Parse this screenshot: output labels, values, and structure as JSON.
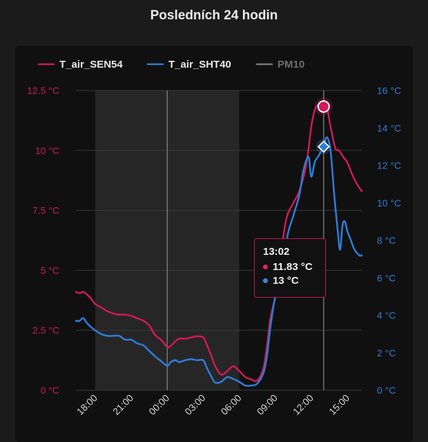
{
  "page": {
    "title": "Posledních 24 hodin"
  },
  "colors": {
    "series1": "#cc1a55",
    "series2": "#2f7bd6",
    "series3": "#777777",
    "hidden_legend_text": "#6d6d6d"
  },
  "chart_data": {
    "type": "line",
    "title": "Posledních 24 hodin",
    "legend_position": "top-left",
    "grid": true,
    "x_tick_labels": [
      "18:00",
      "21:00",
      "00:00",
      "03:00",
      "06:00",
      "09:00",
      "12:00",
      "15:00"
    ],
    "x_tick_hours": [
      18,
      21,
      24,
      27,
      30,
      33,
      36,
      39
    ],
    "xlim": [
      16.4,
      40.2
    ],
    "shaded_night_bands": [
      [
        18,
        24
      ],
      [
        24,
        30
      ]
    ],
    "crosshair_hours": [
      24,
      37.03
    ],
    "y_left": {
      "ticks": [
        "0 °C",
        "2.5 °C",
        "5 °C",
        "7.5 °C",
        "10 °C",
        "12.5 °C"
      ],
      "values": [
        0,
        2.5,
        5,
        7.5,
        10,
        12.5
      ],
      "ylim": [
        0,
        12.5
      ]
    },
    "y_right": {
      "ticks": [
        "0 °C",
        "2 °C",
        "4 °C",
        "6 °C",
        "8 °C",
        "10 °C",
        "12 °C",
        "14 °C",
        "16 °C"
      ],
      "values": [
        0,
        2,
        4,
        6,
        8,
        10,
        12,
        14,
        16
      ],
      "ylim": [
        0,
        16
      ]
    },
    "series": [
      {
        "name": "T_air_SEN54",
        "axis": "left",
        "visible": true,
        "x": [
          16.4,
          16.7,
          17.0,
          17.3,
          17.6,
          18.0,
          18.5,
          19.0,
          19.5,
          20.0,
          20.5,
          21.0,
          21.5,
          22.0,
          22.5,
          23.0,
          23.5,
          24.0,
          24.3,
          24.7,
          25.0,
          25.5,
          26.0,
          26.5,
          27.0,
          27.3,
          27.7,
          28.0,
          28.5,
          29.0,
          29.5,
          30.0,
          30.5,
          31.0,
          31.5,
          32.0,
          32.3,
          32.6,
          33.0,
          33.3,
          33.7,
          34.0,
          34.5,
          35.0,
          35.5,
          35.8,
          36.0,
          36.3,
          36.6,
          37.0,
          37.3,
          37.6,
          38.0,
          38.3,
          38.7,
          39.0,
          39.4,
          39.8,
          40.2
        ],
        "y": [
          4.1,
          4.05,
          4.1,
          4.0,
          3.85,
          3.6,
          3.45,
          3.3,
          3.2,
          3.15,
          3.15,
          3.1,
          3.0,
          2.9,
          2.7,
          2.3,
          2.1,
          1.8,
          1.85,
          2.05,
          2.15,
          2.15,
          2.2,
          2.25,
          2.2,
          1.9,
          1.4,
          1.0,
          0.65,
          0.8,
          1.0,
          0.8,
          0.55,
          0.45,
          0.4,
          0.9,
          1.8,
          3.0,
          3.9,
          5.0,
          6.5,
          7.3,
          7.8,
          8.3,
          9.2,
          10.2,
          11.0,
          11.7,
          11.9,
          11.83,
          11.8,
          11.0,
          10.1,
          10.0,
          9.7,
          9.5,
          9.0,
          8.6,
          8.3
        ]
      },
      {
        "name": "T_air_SHT40",
        "axis": "right",
        "visible": true,
        "x": [
          16.4,
          16.7,
          17.0,
          17.3,
          17.6,
          18.0,
          18.5,
          19.0,
          19.5,
          20.0,
          20.5,
          21.0,
          21.5,
          22.0,
          22.5,
          23.0,
          23.5,
          24.0,
          24.3,
          24.7,
          25.0,
          25.5,
          26.0,
          26.5,
          27.0,
          27.3,
          27.7,
          28.0,
          28.5,
          29.0,
          29.5,
          30.0,
          30.5,
          31.0,
          31.5,
          32.0,
          32.3,
          32.6,
          33.0,
          33.3,
          33.7,
          34.0,
          34.5,
          35.0,
          35.3,
          35.6,
          35.8,
          36.0,
          36.3,
          36.6,
          37.0,
          37.3,
          37.6,
          37.9,
          38.2,
          38.4,
          38.6,
          38.8,
          39.0,
          39.3,
          39.6,
          40.0,
          40.2
        ],
        "y": [
          3.7,
          3.7,
          3.85,
          3.6,
          3.4,
          3.2,
          3.0,
          2.9,
          2.9,
          2.9,
          2.7,
          2.7,
          2.5,
          2.4,
          2.1,
          1.8,
          1.55,
          1.3,
          1.5,
          1.6,
          1.5,
          1.6,
          1.65,
          1.6,
          1.6,
          1.2,
          0.7,
          0.4,
          0.45,
          0.7,
          0.6,
          0.45,
          0.25,
          0.25,
          0.35,
          0.9,
          1.8,
          3.4,
          5.0,
          5.4,
          6.3,
          8.2,
          9.3,
          10.4,
          11.6,
          12.3,
          12.4,
          11.4,
          12.2,
          12.5,
          13.0,
          13.5,
          12.8,
          10.5,
          8.5,
          7.5,
          8.8,
          9.0,
          8.5,
          8.0,
          7.5,
          7.2,
          7.2
        ]
      },
      {
        "name": "PM10",
        "axis": "none",
        "visible": false
      }
    ],
    "tooltip": {
      "time": "13:02",
      "rows": [
        {
          "series": "T_air_SEN54",
          "text": "11.83 °C"
        },
        {
          "series": "T_air_SHT40",
          "text": "13 °C"
        }
      ],
      "hover_points": [
        {
          "series": "T_air_SEN54",
          "hour": 37.03,
          "value": 11.83,
          "axis": "left"
        },
        {
          "series": "T_air_SHT40",
          "hour": 37.03,
          "value": 13,
          "axis": "right"
        }
      ]
    }
  }
}
